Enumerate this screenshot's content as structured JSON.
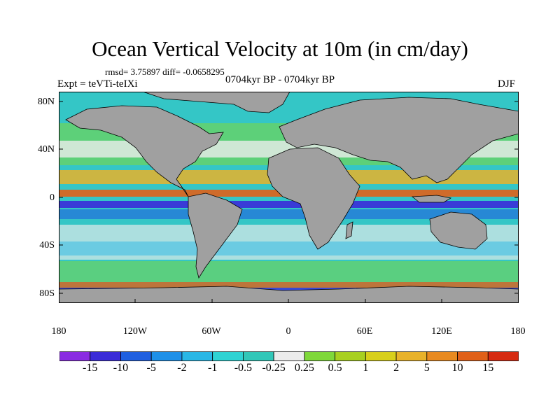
{
  "title": "Ocean Vertical Velocity at 10m (in cm/day)",
  "stats": "rmsd= 3.75897 diff= -0.0658295",
  "period": "0704kyr BP - 0704kyr BP",
  "experiment": "Expt = teVTi-teIXi",
  "season": "DJF",
  "map": {
    "lat_labels": [
      "80N",
      "40N",
      "0",
      "40S",
      "80S"
    ],
    "lon_labels": [
      "180",
      "120W",
      "60W",
      "0",
      "60E",
      "120E",
      "180"
    ],
    "land_color": "#a0a0a0",
    "coastline_color": "#000000"
  },
  "colorbar": {
    "labels": [
      "-15",
      "-10",
      "-5",
      "-2",
      "-1",
      "-0.5",
      "-0.25",
      "0.25",
      "0.5",
      "1",
      "2",
      "5",
      "10",
      "15"
    ],
    "colors": [
      "#8a2be2",
      "#3a2bd8",
      "#1f5fe0",
      "#1e90e8",
      "#29b7e6",
      "#2ed3d3",
      "#31c7b8",
      "#ececec",
      "#7fd83a",
      "#a8d020",
      "#d8cf1a",
      "#e8b22a",
      "#e88a20",
      "#e06018",
      "#d62a10"
    ]
  }
}
